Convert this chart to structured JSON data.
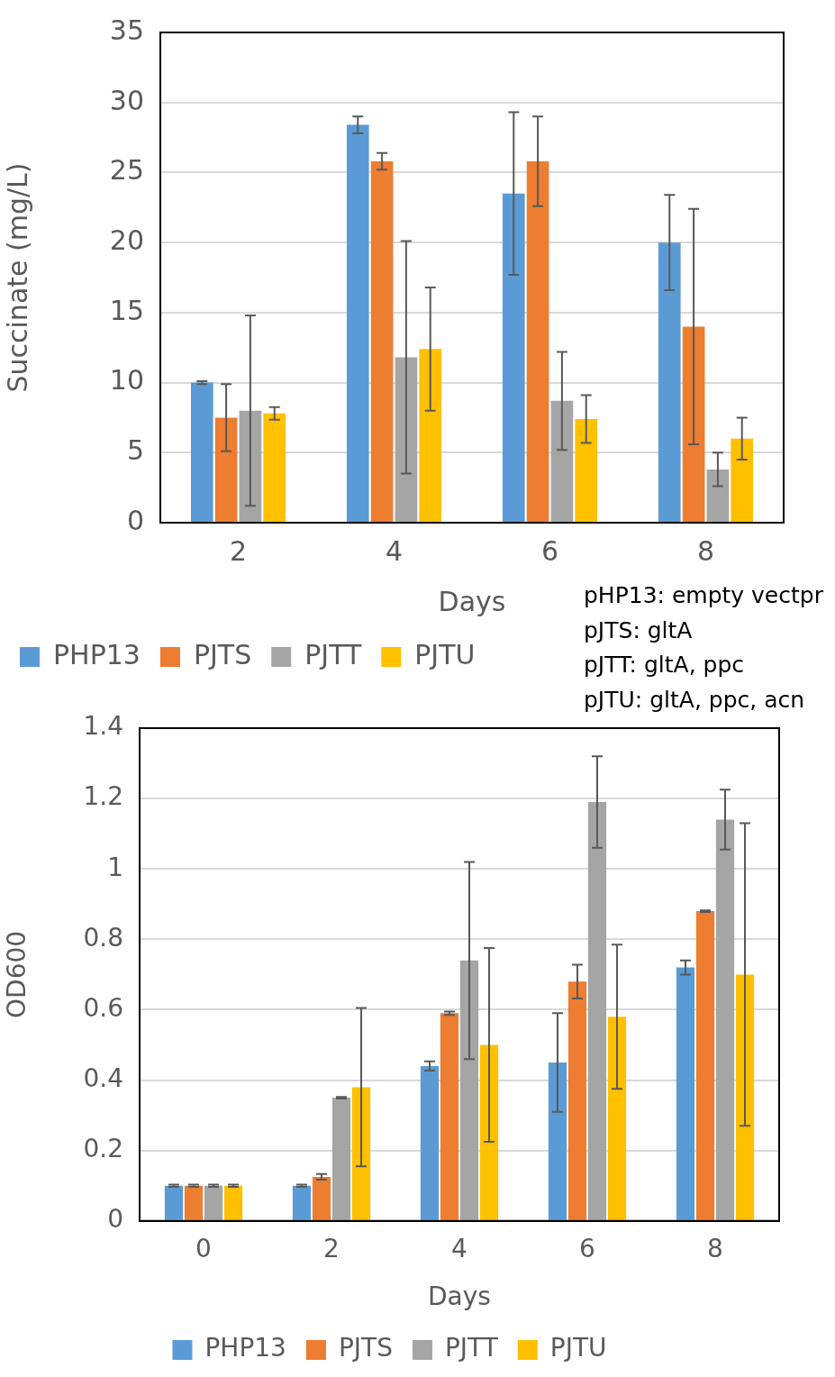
{
  "chart_data": [
    {
      "type": "bar",
      "xlabel": "Days",
      "ylabel": "Succinate (mg/L)",
      "categories": [
        "2",
        "4",
        "6",
        "8"
      ],
      "series": [
        {
          "name": "PHP13",
          "color": "#5b9bd5",
          "values": [
            10,
            28.4,
            23.5,
            20
          ],
          "errors": [
            0.1,
            0.6,
            5.8,
            3.4
          ]
        },
        {
          "name": "PJTS",
          "color": "#ed7d31",
          "values": [
            7.5,
            25.8,
            25.8,
            14
          ],
          "errors": [
            2.4,
            0.6,
            3.2,
            8.4
          ]
        },
        {
          "name": "PJTT",
          "color": "#a5a5a5",
          "values": [
            8,
            11.8,
            8.7,
            3.8
          ],
          "errors": [
            6.8,
            8.3,
            3.5,
            1.2
          ]
        },
        {
          "name": "PJTU",
          "color": "#ffc000",
          "values": [
            7.8,
            12.4,
            7.4,
            6
          ],
          "errors": [
            0.45,
            4.4,
            1.7,
            1.5
          ]
        }
      ],
      "ylim": [
        0,
        35
      ],
      "yticks": [
        0,
        5,
        10,
        15,
        20,
        25,
        30,
        35
      ],
      "grid": "y",
      "legend": "bottom",
      "annotations": [
        "pHP13: empty vectpr",
        "pJTS: gltA",
        "pJTT: gltA, ppc",
        "pJTU: gltA, ppc, acn"
      ]
    },
    {
      "type": "bar",
      "xlabel": "Days",
      "ylabel": "OD600",
      "categories": [
        "0",
        "2",
        "4",
        "6",
        "8"
      ],
      "series": [
        {
          "name": "PHP13",
          "color": "#5b9bd5",
          "values": [
            0.1,
            0.1,
            0.44,
            0.45,
            0.72
          ],
          "errors": [
            0.003,
            0.003,
            0.013,
            0.14,
            0.02
          ]
        },
        {
          "name": "PJTS",
          "color": "#ed7d31",
          "values": [
            0.1,
            0.125,
            0.59,
            0.68,
            0.88
          ],
          "errors": [
            0.003,
            0.008,
            0.005,
            0.048,
            0.002
          ]
        },
        {
          "name": "PJTT",
          "color": "#a5a5a5",
          "values": [
            0.1,
            0.35,
            0.74,
            1.19,
            1.14
          ],
          "errors": [
            0.003,
            0.002,
            0.28,
            0.13,
            0.085
          ]
        },
        {
          "name": "PJTU",
          "color": "#ffc000",
          "values": [
            0.1,
            0.38,
            0.5,
            0.58,
            0.7
          ],
          "errors": [
            0.003,
            0.225,
            0.275,
            0.205,
            0.43
          ]
        }
      ],
      "ylim": [
        0,
        1.4
      ],
      "yticks": [
        0,
        0.2,
        0.4,
        0.6,
        0.8,
        1,
        1.2,
        1.4
      ],
      "grid": "y",
      "legend": "bottom"
    }
  ]
}
